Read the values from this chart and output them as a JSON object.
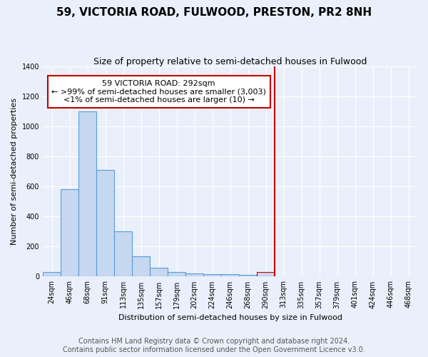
{
  "title": "59, VICTORIA ROAD, FULWOOD, PRESTON, PR2 8NH",
  "subtitle": "Size of property relative to semi-detached houses in Fulwood",
  "xlabel": "Distribution of semi-detached houses by size in Fulwood",
  "ylabel": "Number of semi-detached properties",
  "footer1": "Contains HM Land Registry data © Crown copyright and database right 2024.",
  "footer2": "Contains public sector information licensed under the Open Government Licence v3.0.",
  "annotation_title": "59 VICTORIA ROAD: 292sqm",
  "annotation_line1": "← >99% of semi-detached houses are smaller (3,003)",
  "annotation_line2": "<1% of semi-detached houses are larger (10) →",
  "categories": [
    "24sqm",
    "46sqm",
    "68sqm",
    "91sqm",
    "113sqm",
    "135sqm",
    "157sqm",
    "179sqm",
    "202sqm",
    "224sqm",
    "246sqm",
    "268sqm",
    "290sqm",
    "313sqm",
    "335sqm",
    "357sqm",
    "379sqm",
    "401sqm",
    "424sqm",
    "446sqm",
    "468sqm"
  ],
  "values": [
    30,
    580,
    1100,
    710,
    300,
    135,
    60,
    30,
    20,
    15,
    15,
    10,
    30,
    0,
    0,
    0,
    0,
    0,
    0,
    0,
    0
  ],
  "bar_color": "#c5d8f0",
  "bar_edge_color": "#5b9bd5",
  "highlight_bar_index": 12,
  "highlight_bar_edge_color": "#c00000",
  "red_line_x": 12.5,
  "ylim": [
    0,
    1400
  ],
  "yticks": [
    0,
    200,
    400,
    600,
    800,
    1000,
    1200,
    1400
  ],
  "bg_color": "#eaf0fb",
  "plot_bg_color": "#eaf0fb",
  "grid_color": "#ffffff",
  "annotation_box_color": "#ffffff",
  "annotation_border_color": "#c00000",
  "title_fontsize": 11,
  "subtitle_fontsize": 9,
  "axis_label_fontsize": 8,
  "tick_fontsize": 7,
  "footer_fontsize": 7,
  "annotation_fontsize": 8
}
